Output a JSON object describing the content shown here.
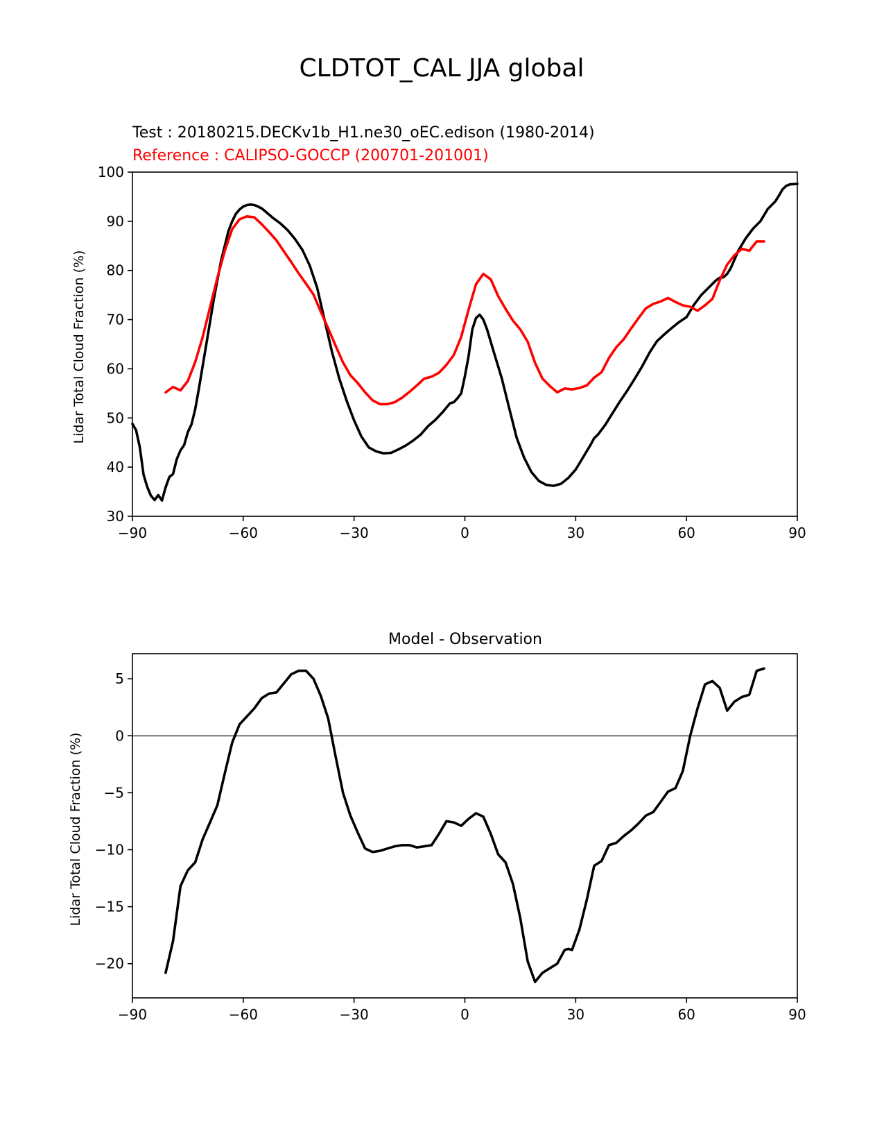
{
  "figure_title": "CLDTOT_CAL JJA global",
  "colors": {
    "test": "#000000",
    "reference": "#ff0000",
    "zero_line": "#808080",
    "axis": "#000000"
  },
  "chart_data": [
    {
      "type": "line",
      "id": "top",
      "title": "",
      "test_label": "Test : 20180215.DECKv1b_H1.ne30_oEC.edison (1980-2014)",
      "reference_label": "Reference : CALIPSO-GOCCP (200701-201001)",
      "xlabel": "",
      "ylabel": "Lidar Total Cloud Fraction (%)",
      "xlim": [
        -90,
        90
      ],
      "ylim": [
        30,
        100
      ],
      "xticks": [
        -90,
        -60,
        -30,
        0,
        30,
        60,
        90
      ],
      "xtick_labels": [
        "−90",
        "−60",
        "−30",
        "0",
        "30",
        "60",
        "90"
      ],
      "yticks": [
        30,
        40,
        50,
        60,
        70,
        80,
        90,
        100
      ],
      "ytick_labels": [
        "30",
        "40",
        "50",
        "60",
        "70",
        "80",
        "90",
        "100"
      ],
      "series": [
        {
          "name": "Test",
          "color": "#000000",
          "x": [
            -90,
            -89,
            -88,
            -87,
            -86,
            -85,
            -84,
            -83,
            -82,
            -81,
            -80,
            -79,
            -78,
            -77,
            -76,
            -75,
            -74,
            -73,
            -72,
            -71,
            -70,
            -68,
            -66,
            -64,
            -63,
            -62,
            -61,
            -60,
            -59,
            -58,
            -57,
            -56,
            -55,
            -54,
            -52,
            -50,
            -48,
            -46,
            -44,
            -42,
            -40,
            -38,
            -36,
            -34,
            -32,
            -30,
            -28,
            -26,
            -24,
            -22,
            -20,
            -18,
            -16,
            -14,
            -12,
            -10,
            -8,
            -6,
            -4,
            -3,
            -2,
            -1,
            0,
            1,
            2,
            3,
            4,
            5,
            6,
            7,
            8,
            9,
            10,
            12,
            14,
            16,
            18,
            20,
            22,
            24,
            26,
            27,
            28,
            30,
            32,
            34,
            35,
            36,
            38,
            40,
            42,
            44,
            46,
            48,
            50,
            52,
            54,
            56,
            58,
            60,
            62,
            64,
            66,
            68,
            69,
            70,
            71,
            72,
            74,
            76,
            78,
            80,
            82,
            84,
            85,
            86,
            87,
            88,
            90
          ],
          "y": [
            48.8,
            47.5,
            44.0,
            38.5,
            36.0,
            34.2,
            33.3,
            34.3,
            33.2,
            35.9,
            38.0,
            38.6,
            41.6,
            43.4,
            44.5,
            47.1,
            48.7,
            51.8,
            56.0,
            60.5,
            65.0,
            74.0,
            82.0,
            88.0,
            90.0,
            91.5,
            92.4,
            93.0,
            93.3,
            93.4,
            93.3,
            93.0,
            92.6,
            92.0,
            90.7,
            89.6,
            88.2,
            86.4,
            84.2,
            81.0,
            76.5,
            70.0,
            63.5,
            58.0,
            53.5,
            49.5,
            46.2,
            44.0,
            43.2,
            42.8,
            42.9,
            43.6,
            44.4,
            45.4,
            46.6,
            48.3,
            49.6,
            51.2,
            53.0,
            53.2,
            54.0,
            55.0,
            58.5,
            62.5,
            68.0,
            70.3,
            71.0,
            70.0,
            68.0,
            65.5,
            63.0,
            60.5,
            58.0,
            52.0,
            46.0,
            42.0,
            39.0,
            37.2,
            36.4,
            36.2,
            36.6,
            37.2,
            37.8,
            39.5,
            42.0,
            44.5,
            45.9,
            46.6,
            48.6,
            51.0,
            53.4,
            55.6,
            58.0,
            60.5,
            63.3,
            65.6,
            67.0,
            68.3,
            69.5,
            70.5,
            73.0,
            75.0,
            76.5,
            78.0,
            78.5,
            78.6,
            79.3,
            80.5,
            84.0,
            86.5,
            88.5,
            90.0,
            92.5,
            94.0,
            95.2,
            96.5,
            97.2,
            97.5,
            97.6
          ]
        },
        {
          "name": "Reference",
          "color": "#ff0000",
          "x": [
            -81,
            -79,
            -77,
            -75,
            -73,
            -71,
            -69,
            -67,
            -65,
            -63,
            -61,
            -59,
            -57,
            -55,
            -53,
            -51,
            -49,
            -47,
            -45,
            -43,
            -41,
            -39,
            -37,
            -35,
            -33,
            -31,
            -29,
            -27,
            -25,
            -23,
            -21,
            -19,
            -17,
            -15,
            -13,
            -11,
            -9,
            -7,
            -5,
            -3,
            -1,
            1,
            3,
            5,
            7,
            9,
            11,
            13,
            15,
            17,
            19,
            21,
            23,
            25,
            27,
            29,
            31,
            33,
            35,
            37,
            39,
            41,
            43,
            45,
            47,
            49,
            51,
            53,
            55,
            57,
            59,
            61,
            63,
            65,
            67,
            69,
            71,
            73,
            75,
            77,
            79,
            81
          ],
          "y": [
            55.2,
            56.3,
            55.6,
            57.5,
            61.4,
            66.4,
            72.5,
            78.5,
            84.0,
            88.4,
            90.4,
            91.0,
            90.8,
            89.4,
            87.8,
            86.1,
            83.9,
            81.7,
            79.4,
            77.3,
            75.1,
            71.6,
            68.2,
            64.7,
            61.3,
            58.7,
            57.1,
            55.2,
            53.6,
            52.8,
            52.8,
            53.2,
            54.1,
            55.3,
            56.6,
            58.0,
            58.4,
            59.2,
            60.8,
            62.8,
            66.5,
            72.0,
            77.2,
            79.3,
            78.2,
            74.8,
            72.2,
            69.8,
            68.0,
            65.5,
            61.2,
            58.0,
            56.5,
            55.2,
            56.0,
            55.8,
            56.1,
            56.6,
            58.2,
            59.3,
            62.2,
            64.4,
            66.0,
            68.2,
            70.3,
            72.3,
            73.2,
            73.7,
            74.4,
            73.6,
            72.9,
            72.6,
            71.8,
            72.9,
            74.2,
            78.0,
            81.2,
            83.1,
            84.4,
            84.0,
            85.9,
            85.9
          ]
        }
      ]
    },
    {
      "type": "line",
      "id": "bottom",
      "title": "Model - Observation",
      "xlabel": "",
      "ylabel": "Lidar Total Cloud Fraction (%)",
      "xlim": [
        -90,
        90
      ],
      "ylim": [
        -23,
        7.2
      ],
      "xticks": [
        -90,
        -60,
        -30,
        0,
        30,
        60,
        90
      ],
      "xtick_labels": [
        "−90",
        "−60",
        "−30",
        "0",
        "30",
        "60",
        "90"
      ],
      "yticks": [
        -20,
        -15,
        -10,
        -5,
        0,
        5
      ],
      "ytick_labels": [
        "−20",
        "−15",
        "−10",
        "−5",
        "0",
        "5"
      ],
      "zero_line": 0,
      "series": [
        {
          "name": "Model - Observation",
          "color": "#000000",
          "x": [
            -81,
            -79,
            -77,
            -75,
            -73,
            -71,
            -69,
            -67,
            -65,
            -63,
            -61,
            -59,
            -57,
            -55,
            -53,
            -51,
            -49,
            -47,
            -45,
            -43,
            -41,
            -39,
            -37,
            -35,
            -33,
            -31,
            -29,
            -27,
            -25,
            -23,
            -21,
            -19,
            -17,
            -15,
            -13,
            -11,
            -9,
            -7,
            -5,
            -3,
            -1,
            1,
            3,
            5,
            7,
            9,
            11,
            13,
            15,
            17,
            19,
            21,
            23,
            25,
            27,
            28,
            29,
            31,
            33,
            35,
            37,
            39,
            41,
            43,
            45,
            47,
            49,
            51,
            53,
            55,
            57,
            59,
            61,
            63,
            65,
            67,
            69,
            71,
            73,
            75,
            77,
            79,
            81
          ],
          "y": [
            -20.8,
            -18.0,
            -13.2,
            -11.8,
            -11.1,
            -9.1,
            -7.6,
            -6.1,
            -3.3,
            -0.6,
            1.0,
            1.7,
            2.4,
            3.3,
            3.7,
            3.8,
            4.6,
            5.4,
            5.7,
            5.7,
            5.0,
            3.5,
            1.5,
            -1.8,
            -5.0,
            -7.0,
            -8.5,
            -9.9,
            -10.2,
            -10.1,
            -9.9,
            -9.7,
            -9.6,
            -9.6,
            -9.8,
            -9.7,
            -9.6,
            -8.6,
            -7.5,
            -7.6,
            -7.9,
            -7.3,
            -6.8,
            -7.1,
            -8.6,
            -10.4,
            -11.1,
            -13.0,
            -16.0,
            -19.8,
            -21.6,
            -20.8,
            -20.4,
            -20.0,
            -18.8,
            -18.7,
            -18.8,
            -17.0,
            -14.4,
            -11.4,
            -11.0,
            -9.6,
            -9.4,
            -8.8,
            -8.3,
            -7.7,
            -7.0,
            -6.7,
            -5.8,
            -4.9,
            -4.6,
            -3.1,
            0.0,
            2.4,
            4.5,
            4.8,
            4.2,
            2.2,
            3.0,
            3.4,
            3.6,
            5.7,
            5.9
          ]
        }
      ]
    }
  ]
}
